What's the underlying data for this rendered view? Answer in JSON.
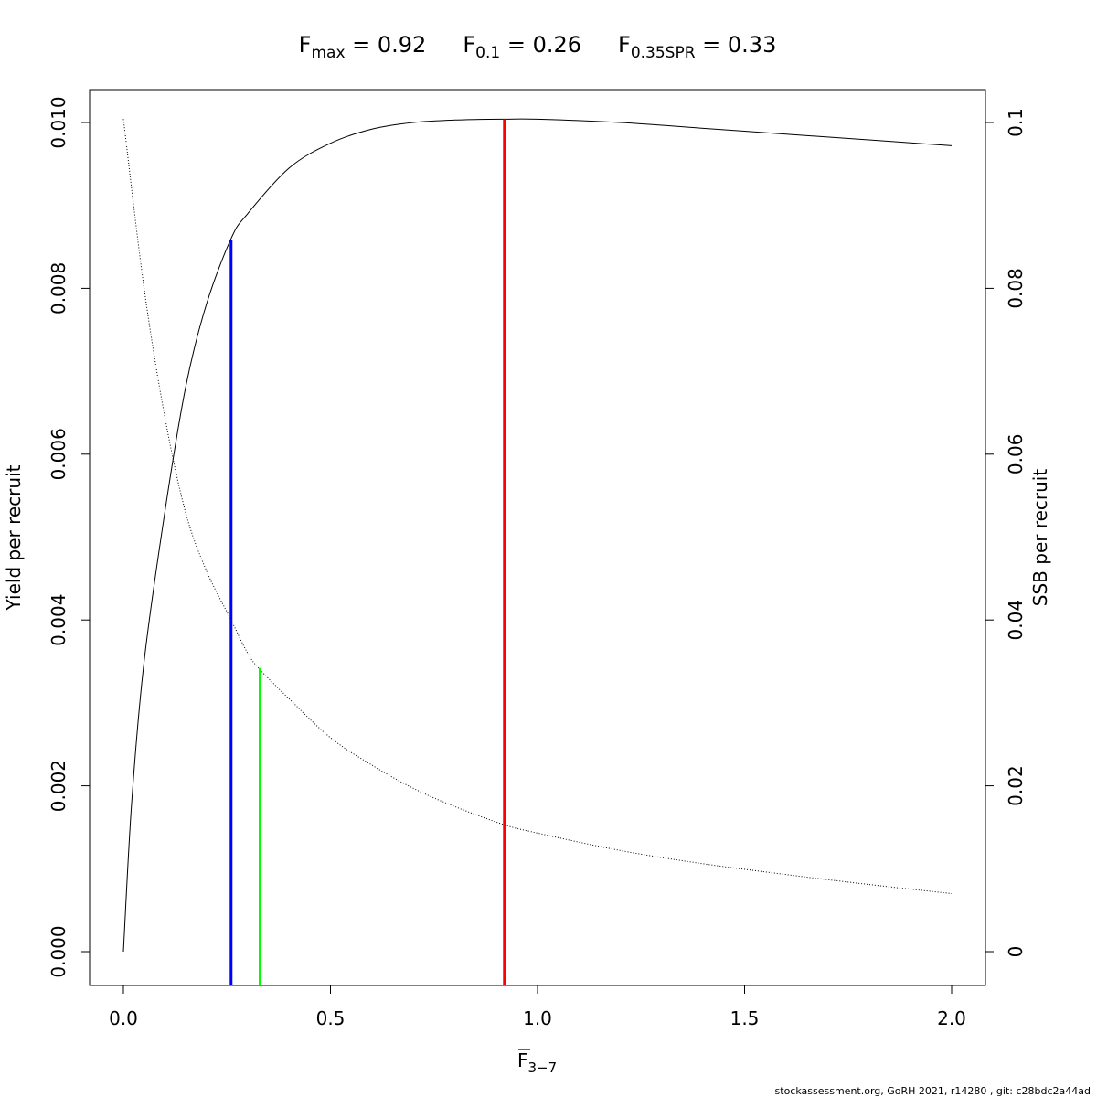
{
  "chart_data": {
    "type": "line",
    "title": {
      "fmax": {
        "sym": "F",
        "sub": "max",
        "eq": " = ",
        "val": "0.92"
      },
      "f01": {
        "sym": "F",
        "sub": "0.1",
        "eq": " = ",
        "val": "0.26"
      },
      "fspr": {
        "sym": "F",
        "sub": "0.35SPR",
        "eq": " = ",
        "val": "0.33"
      }
    },
    "xlabel": {
      "sym": "F",
      "sub": "3−7"
    },
    "ylabel": "Yield per recruit",
    "y2label": "SSB per recruit",
    "xlim": [
      -0.08,
      2.08
    ],
    "ylim": [
      -0.0004,
      0.0104
    ],
    "y2lim": [
      -0.004,
      0.104
    ],
    "x_ticks": [
      0.0,
      0.5,
      1.0,
      1.5,
      2.0
    ],
    "x_tick_labels": [
      "0.0",
      "0.5",
      "1.0",
      "1.5",
      "2.0"
    ],
    "y_ticks": [
      0.0,
      0.002,
      0.004,
      0.006,
      0.008,
      0.01
    ],
    "y_tick_labels": [
      "0.000",
      "0.002",
      "0.004",
      "0.006",
      "0.008",
      "0.010"
    ],
    "y2_ticks": [
      0,
      0.02,
      0.04,
      0.06,
      0.08,
      0.1
    ],
    "y2_tick_labels": [
      "0",
      "0.02",
      "0.04",
      "0.06",
      "0.08",
      "0.1"
    ],
    "grid": false,
    "series": [
      {
        "axis": "left",
        "style": "solid",
        "color": "#000000",
        "x": [
          0,
          0.02,
          0.05,
          0.1,
          0.15,
          0.2,
          0.26,
          0.3,
          0.4,
          0.5,
          0.6,
          0.7,
          0.8,
          0.92,
          1.0,
          1.2,
          1.4,
          1.6,
          1.8,
          2.0
        ],
        "y": [
          0.0,
          0.0018,
          0.0035,
          0.0053,
          0.0068,
          0.0078,
          0.0086,
          0.0089,
          0.00945,
          0.00975,
          0.00992,
          0.01,
          0.01003,
          0.01004,
          0.01004,
          0.01,
          0.00993,
          0.00986,
          0.00979,
          0.00972
        ]
      },
      {
        "axis": "right",
        "style": "dotted",
        "color": "#000000",
        "x": [
          0,
          0.05,
          0.1,
          0.15,
          0.2,
          0.26,
          0.3,
          0.33,
          0.4,
          0.5,
          0.6,
          0.7,
          0.8,
          0.92,
          1.0,
          1.2,
          1.4,
          1.6,
          1.8,
          2.0
        ],
        "y": [
          0.1004,
          0.08,
          0.0645,
          0.053,
          0.046,
          0.04,
          0.036,
          0.034,
          0.0305,
          0.0258,
          0.0225,
          0.0197,
          0.0175,
          0.0153,
          0.0143,
          0.0122,
          0.0106,
          0.0093,
          0.0081,
          0.007
        ]
      }
    ],
    "reference_lines": [
      {
        "name": "F0.1",
        "x": 0.26,
        "y_top": 0.00858,
        "color": "#0000ff"
      },
      {
        "name": "F0.35SPR",
        "x": 0.33,
        "y_top": 0.00342,
        "color": "#00ff00"
      },
      {
        "name": "Fmax",
        "x": 0.92,
        "y_top": 0.01004,
        "color": "#ff0000"
      }
    ]
  },
  "footer": "stockassessment.org, GoRH  2021, r14280 , git: c28bdc2a44ad"
}
